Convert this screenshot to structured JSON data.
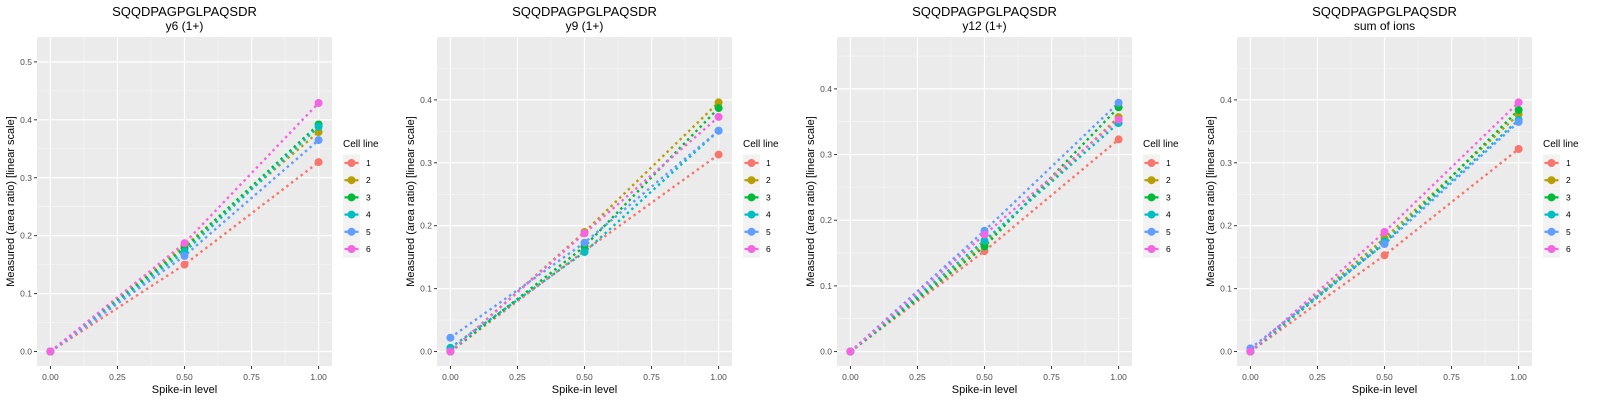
{
  "figure": {
    "legend_title": "Cell line",
    "legend_position": "right"
  },
  "chart_data": [
    {
      "type": "line",
      "title": "SQQDPAGPGLPAQSDR",
      "subtitle": "y6 (1+)",
      "xlabel": "Spike-in level",
      "ylabel": "Measured (area ratio) [linear scale]",
      "x": [
        0,
        0.5,
        1.0
      ],
      "xlim": [
        -0.05,
        1.05
      ],
      "ylim": [
        -0.025,
        0.543
      ],
      "xticks": [
        "0.00",
        "0.25",
        "0.50",
        "0.75",
        "1.00"
      ],
      "yticks": [
        "0.0",
        "0.1",
        "0.2",
        "0.3",
        "0.4",
        "0.5"
      ],
      "grid": true,
      "legend_title": "Cell line",
      "series": [
        {
          "name": "1",
          "color": "#F8766D",
          "values": [
            0.0,
            0.15,
            0.327
          ]
        },
        {
          "name": "2",
          "color": "#B79F00",
          "values": [
            0.0,
            0.182,
            0.379
          ]
        },
        {
          "name": "3",
          "color": "#00BA38",
          "values": [
            0.0,
            0.178,
            0.392
          ]
        },
        {
          "name": "4",
          "color": "#00BFC4",
          "values": [
            0.0,
            0.172,
            0.388
          ]
        },
        {
          "name": "5",
          "color": "#619CFF",
          "values": [
            0.0,
            0.165,
            0.365
          ]
        },
        {
          "name": "6",
          "color": "#F564E3",
          "values": [
            0.0,
            0.187,
            0.429
          ]
        }
      ]
    },
    {
      "type": "line",
      "title": "SQQDPAGPGLPAQSDR",
      "subtitle": "y9 (1+)",
      "xlabel": "Spike-in level",
      "ylabel": "Measured (area ratio) [linear scale]",
      "x": [
        0,
        0.5,
        1.0
      ],
      "xlim": [
        -0.05,
        1.05
      ],
      "ylim": [
        -0.023,
        0.5
      ],
      "xticks": [
        "0.00",
        "0.25",
        "0.50",
        "0.75",
        "1.00"
      ],
      "yticks": [
        "0.0",
        "0.1",
        "0.2",
        "0.3",
        "0.4"
      ],
      "grid": true,
      "legend_title": "Cell line",
      "series": [
        {
          "name": "1",
          "color": "#F8766D",
          "values": [
            0.0,
            0.16,
            0.313
          ]
        },
        {
          "name": "2",
          "color": "#B79F00",
          "values": [
            0.0,
            0.19,
            0.396
          ]
        },
        {
          "name": "3",
          "color": "#00BA38",
          "values": [
            0.0,
            0.167,
            0.387
          ]
        },
        {
          "name": "4",
          "color": "#00BFC4",
          "values": [
            0.006,
            0.158,
            0.351
          ]
        },
        {
          "name": "5",
          "color": "#619CFF",
          "values": [
            0.022,
            0.173,
            0.351
          ]
        },
        {
          "name": "6",
          "color": "#F564E3",
          "values": [
            0.0,
            0.188,
            0.373
          ]
        }
      ]
    },
    {
      "type": "line",
      "title": "SQQDPAGPGLPAQSDR",
      "subtitle": "y12 (1+)",
      "xlabel": "Spike-in level",
      "ylabel": "Measured (area ratio) [linear scale]",
      "x": [
        0,
        0.5,
        1.0
      ],
      "xlim": [
        -0.05,
        1.05
      ],
      "ylim": [
        -0.022,
        0.479
      ],
      "xticks": [
        "0.00",
        "0.25",
        "0.50",
        "0.75",
        "1.00"
      ],
      "yticks": [
        "0.0",
        "0.1",
        "0.2",
        "0.3",
        "0.4"
      ],
      "grid": true,
      "legend_title": "Cell line",
      "series": [
        {
          "name": "1",
          "color": "#F8766D",
          "values": [
            0.0,
            0.153,
            0.323
          ]
        },
        {
          "name": "2",
          "color": "#B79F00",
          "values": [
            0.0,
            0.165,
            0.357
          ]
        },
        {
          "name": "3",
          "color": "#00BA38",
          "values": [
            0.0,
            0.16,
            0.372
          ]
        },
        {
          "name": "4",
          "color": "#00BFC4",
          "values": [
            0.0,
            0.169,
            0.348
          ]
        },
        {
          "name": "5",
          "color": "#619CFF",
          "values": [
            0.0,
            0.184,
            0.379
          ]
        },
        {
          "name": "6",
          "color": "#F564E3",
          "values": [
            0.0,
            0.178,
            0.353
          ]
        }
      ]
    },
    {
      "type": "line",
      "title": "SQQDPAGPGLPAQSDR",
      "subtitle": "sum of ions",
      "xlabel": "Spike-in level",
      "ylabel": "Measured (area ratio) [linear scale]",
      "x": [
        0,
        0.5,
        1.0
      ],
      "xlim": [
        -0.05,
        1.05
      ],
      "ylim": [
        -0.023,
        0.5
      ],
      "xticks": [
        "0.00",
        "0.25",
        "0.50",
        "0.75",
        "1.00"
      ],
      "yticks": [
        "0.0",
        "0.1",
        "0.2",
        "0.3",
        "0.4"
      ],
      "grid": true,
      "legend_title": "Cell line",
      "series": [
        {
          "name": "1",
          "color": "#F8766D",
          "values": [
            0.0,
            0.153,
            0.322
          ]
        },
        {
          "name": "2",
          "color": "#B79F00",
          "values": [
            0.0,
            0.18,
            0.377
          ]
        },
        {
          "name": "3",
          "color": "#00BA38",
          "values": [
            0.0,
            0.172,
            0.384
          ]
        },
        {
          "name": "4",
          "color": "#00BFC4",
          "values": [
            0.0,
            0.175,
            0.368
          ]
        },
        {
          "name": "5",
          "color": "#619CFF",
          "values": [
            0.005,
            0.171,
            0.365
          ]
        },
        {
          "name": "6",
          "color": "#F564E3",
          "values": [
            0.0,
            0.19,
            0.396
          ]
        }
      ]
    }
  ]
}
